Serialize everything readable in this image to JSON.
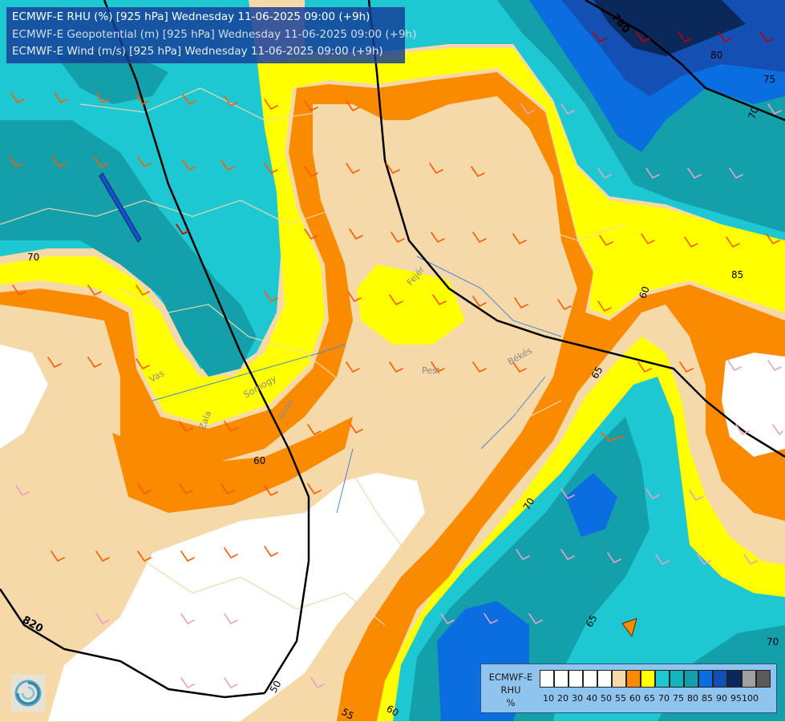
{
  "header": {
    "line1": "ECMWF-E RHU (%) [925 hPa] Wednesday 11-06-2025 09:00 (+9h)",
    "line2": "ECMWF-E Geopotential (m) [925 hPa] Wednesday 11-06-2025 09:00 (+9h)",
    "line3": "ECMWF-E Wind (m/s) [925 hPa] Wednesday 11-06-2025 09:00 (+9h)"
  },
  "map": {
    "contour_labels": [
      "780",
      "80",
      "75",
      "70",
      "70",
      "85",
      "60",
      "65",
      "70",
      "65",
      "70",
      "60",
      "60",
      "55",
      "50",
      "820"
    ],
    "region_labels": [
      "Vas",
      "Pest",
      "Békés",
      "Fejér",
      "Somogy",
      "Tolna",
      "Zala"
    ]
  },
  "legend": {
    "title_line1": "ECMWF-E",
    "title_line2": "RHU",
    "title_line3": "%",
    "ticks": [
      "10",
      "20",
      "30",
      "40",
      "50",
      "55",
      "60",
      "65",
      "70",
      "75",
      "80",
      "85",
      "90",
      "95",
      "100"
    ],
    "colors": [
      "#ffffff",
      "#ffffff",
      "#ffffff",
      "#ffffff",
      "#ffffff",
      "#f5d9a9",
      "#fa8a00",
      "#ffff00",
      "#1ec8d2",
      "#14b4be",
      "#14a0aa",
      "#0a6ee0",
      "#1450b4",
      "#0a285a",
      "#a0a0a0",
      "#5a5a5a"
    ]
  }
}
